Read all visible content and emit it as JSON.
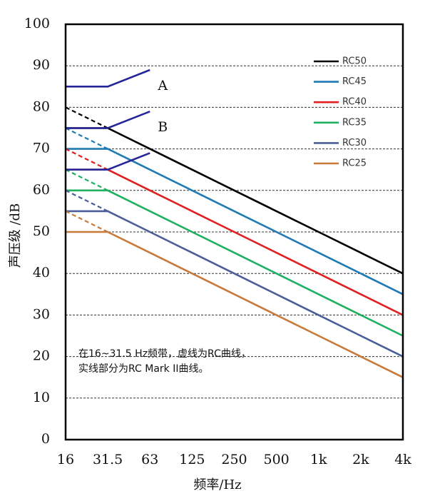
{
  "chart_data": {
    "type": "line",
    "x_label": "频率/Hz",
    "y_label": "声压级 /dB",
    "categories": [
      "16",
      "31.5",
      "63",
      "125",
      "250",
      "500",
      "1k",
      "2k",
      "4k"
    ],
    "ylim": [
      0,
      100
    ],
    "yticks": [
      0,
      10,
      20,
      30,
      40,
      50,
      60,
      70,
      80,
      90,
      100
    ],
    "grid": true,
    "legend": "upper right",
    "series": [
      {
        "name": "RC50",
        "color": "#000000",
        "values": [
          75,
          75,
          70,
          65,
          60,
          55,
          50,
          45,
          40
        ],
        "dashed": [
          80,
          75,
          null,
          null,
          null,
          null,
          null,
          null,
          null
        ]
      },
      {
        "name": "RC45",
        "color": "#1f7ab5",
        "values": [
          70,
          70,
          65,
          60,
          55,
          50,
          45,
          40,
          35
        ],
        "dashed": [
          75,
          70,
          null,
          null,
          null,
          null,
          null,
          null,
          null
        ]
      },
      {
        "name": "RC40",
        "color": "#e02020",
        "values": [
          65,
          65,
          60,
          55,
          50,
          45,
          40,
          35,
          30
        ],
        "dashed": [
          70,
          65,
          null,
          null,
          null,
          null,
          null,
          null,
          null
        ]
      },
      {
        "name": "RC35",
        "color": "#1fb060",
        "values": [
          60,
          60,
          55,
          50,
          45,
          40,
          35,
          30,
          25
        ],
        "dashed": [
          65,
          60,
          null,
          null,
          null,
          null,
          null,
          null,
          null
        ]
      },
      {
        "name": "RC30",
        "color": "#4a5e9a",
        "values": [
          55,
          55,
          50,
          45,
          40,
          35,
          30,
          25,
          20
        ],
        "dashed": [
          60,
          55,
          null,
          null,
          null,
          null,
          null,
          null,
          null
        ]
      },
      {
        "name": "RC25",
        "color": "#c87a3a",
        "values": [
          50,
          50,
          45,
          40,
          35,
          30,
          25,
          20,
          15
        ],
        "dashed": [
          55,
          50,
          null,
          null,
          null,
          null,
          null,
          null,
          null
        ]
      }
    ],
    "boundaries": [
      {
        "label": "A",
        "color": "#26269a",
        "values": [
          85,
          85,
          89,
          null,
          null,
          null,
          null,
          null,
          null
        ]
      },
      {
        "label": "B",
        "color": "#26269a",
        "values": [
          75,
          75,
          79,
          null,
          null,
          null,
          null,
          null,
          null
        ]
      },
      {
        "color": "#26269a",
        "values": [
          65,
          65,
          69,
          null,
          null,
          null,
          null,
          null,
          null
        ]
      }
    ],
    "annotation": [
      "在16~31.5 Hz频带，虚线为RC曲线，",
      "实线部分为RC Mark II曲线。"
    ]
  }
}
